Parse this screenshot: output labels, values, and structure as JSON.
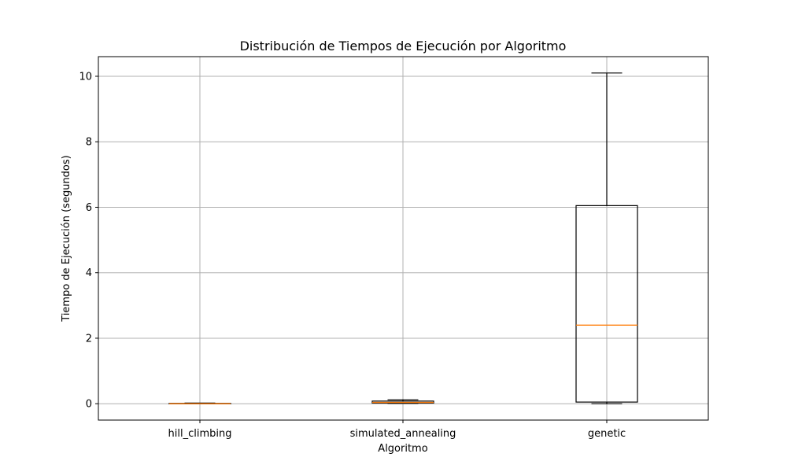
{
  "chart_data": {
    "type": "boxplot",
    "title": "Distribución de Tiempos de Ejecución por Algoritmo",
    "xlabel": "Algoritmo",
    "ylabel": "Tiempo de Ejecución (segundos)",
    "categories": [
      "hill_climbing",
      "simulated_annealing",
      "genetic"
    ],
    "boxes": [
      {
        "whisker_low": 0.0,
        "q1": 0.0,
        "median": 0.0,
        "q3": 0.01,
        "whisker_high": 0.02
      },
      {
        "whisker_low": 0.01,
        "q1": 0.02,
        "median": 0.04,
        "q3": 0.08,
        "whisker_high": 0.12
      },
      {
        "whisker_low": 0.0,
        "q1": 0.05,
        "median": 2.4,
        "q3": 6.05,
        "whisker_high": 10.1
      }
    ],
    "yticks": [
      0,
      2,
      4,
      6,
      8,
      10
    ],
    "ylim": [
      -0.5,
      10.6
    ],
    "grid": true,
    "colors": {
      "box": "#000000",
      "median": "#ff7f0e",
      "grid": "#b0b0b0"
    }
  }
}
